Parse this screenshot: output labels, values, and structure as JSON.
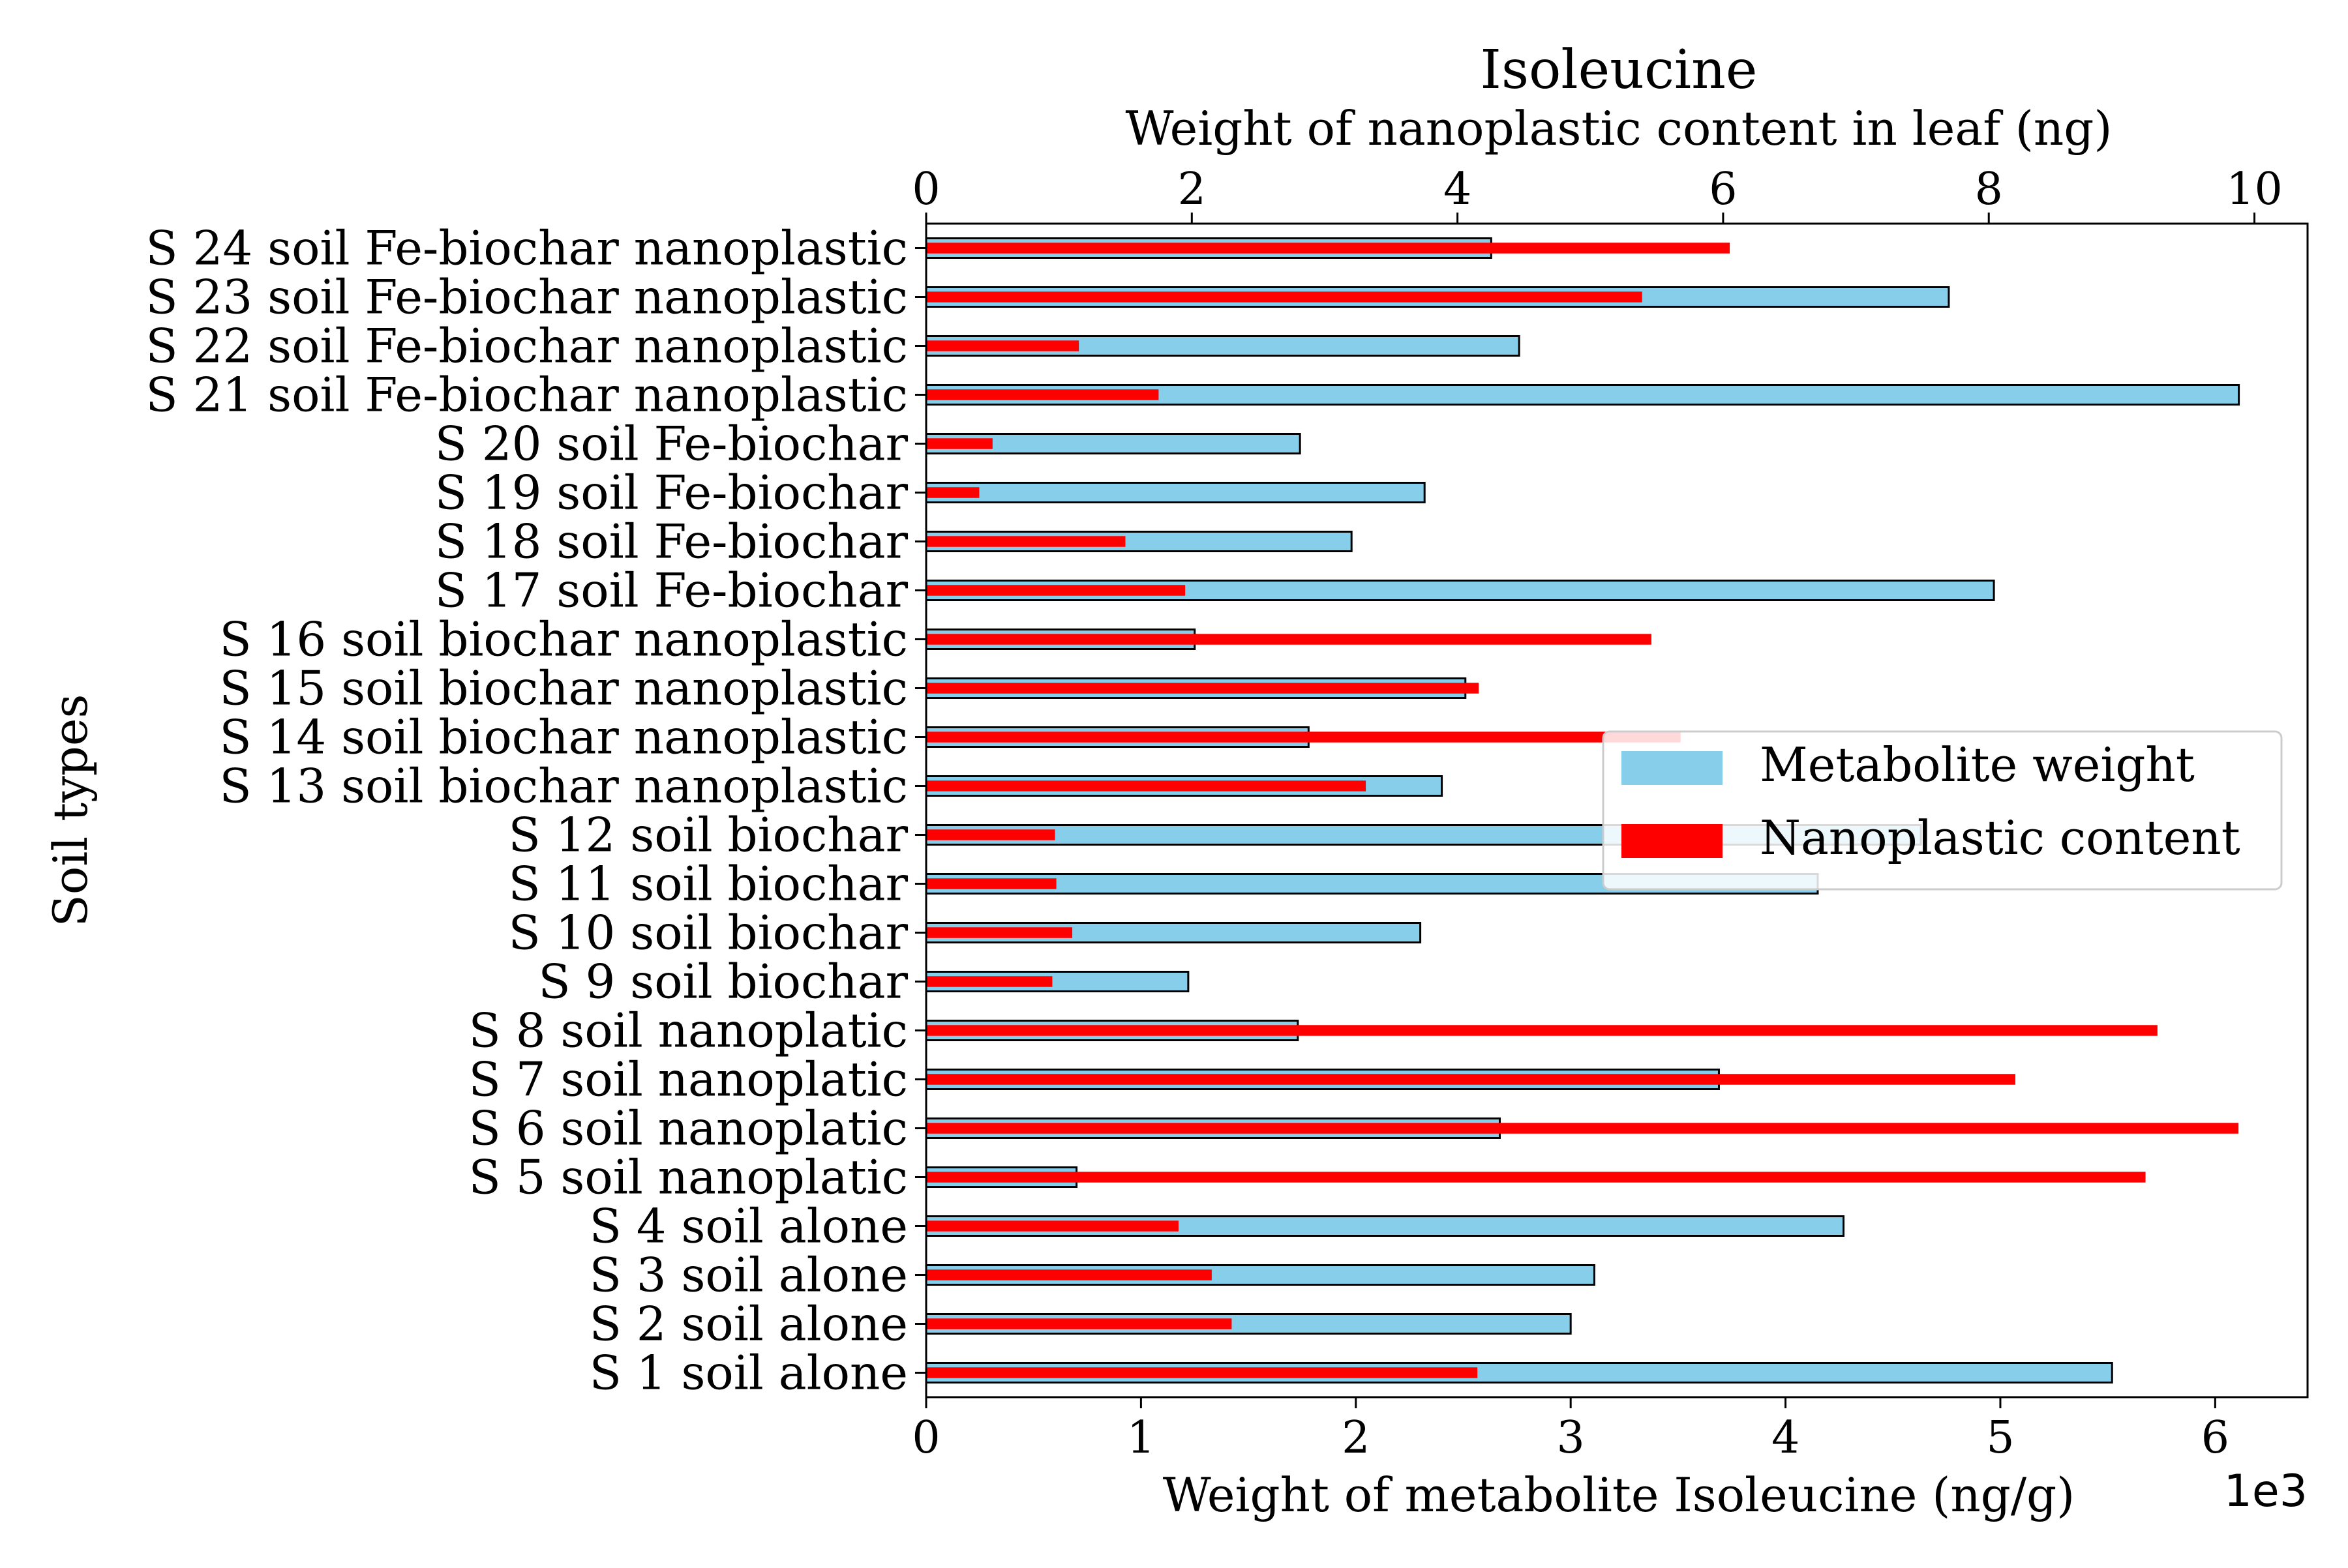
{
  "chart_data": {
    "type": "bar",
    "orientation": "horizontal",
    "title": "Isoleucine",
    "title_color": "#a52a2a",
    "xlabel": "Weight of metabolite Isoleucine (ng/g)",
    "x_offset_label": "1e3",
    "x2label": "Weight of nanoplastic content in leaf (ng)",
    "ylabel": "Soil types",
    "xlim": [
      0,
      6.43
    ],
    "x_scale_multiplier": 1000,
    "xticks": [
      "0",
      "1",
      "2",
      "3",
      "4",
      "5",
      "6"
    ],
    "x2lim": [
      0,
      10.4
    ],
    "x2ticks": [
      "0",
      "2",
      "4",
      "6",
      "8",
      "10"
    ],
    "grid": false,
    "legend_position": "center-right",
    "categories": [
      "S 1 soil alone",
      "S 2 soil alone",
      "S 3 soil alone",
      "S 4 soil alone",
      "S 5 soil nanoplatic",
      "S 6 soil nanoplatic",
      "S 7 soil nanoplatic",
      "S 8 soil nanoplatic",
      "S 9 soil biochar",
      "S 10 soil biochar",
      "S 11 soil biochar",
      "S 12 soil biochar",
      "S 13 soil biochar nanoplastic",
      "S 14 soil biochar nanoplastic",
      "S 15 soil biochar nanoplastic",
      "S 16 soil biochar nanoplastic",
      "S 17 soil Fe-biochar",
      "S 18 soil Fe-biochar",
      "S 19 soil Fe-biochar",
      "S 20 soil Fe-biochar",
      "S 21 soil Fe-biochar nanoplastic",
      "S 22 soil Fe-biochar nanoplastic",
      "S 23 soil Fe-biochar nanoplastic",
      "S 24 soil Fe-biochar nanoplastic"
    ],
    "series": [
      {
        "name": "Metabolite weight",
        "axis": "bottom",
        "color": "#87ceeb",
        "edgecolor": "#000000",
        "values": [
          5520,
          3000,
          3110,
          4270,
          700,
          2670,
          3690,
          1730,
          1220,
          2300,
          4150,
          4630,
          2400,
          1780,
          2510,
          1250,
          4970,
          1980,
          2320,
          1740,
          6110,
          2760,
          4760,
          2630
        ]
      },
      {
        "name": "Nanoplastic content",
        "axis": "top",
        "color": "#ff0000",
        "values": [
          4.15,
          2.3,
          2.15,
          1.9,
          9.18,
          9.88,
          8.2,
          9.27,
          0.95,
          1.1,
          0.98,
          0.97,
          3.31,
          5.68,
          4.16,
          5.46,
          1.95,
          1.5,
          0.4,
          0.5,
          1.75,
          1.15,
          5.39,
          6.05
        ]
      }
    ]
  }
}
